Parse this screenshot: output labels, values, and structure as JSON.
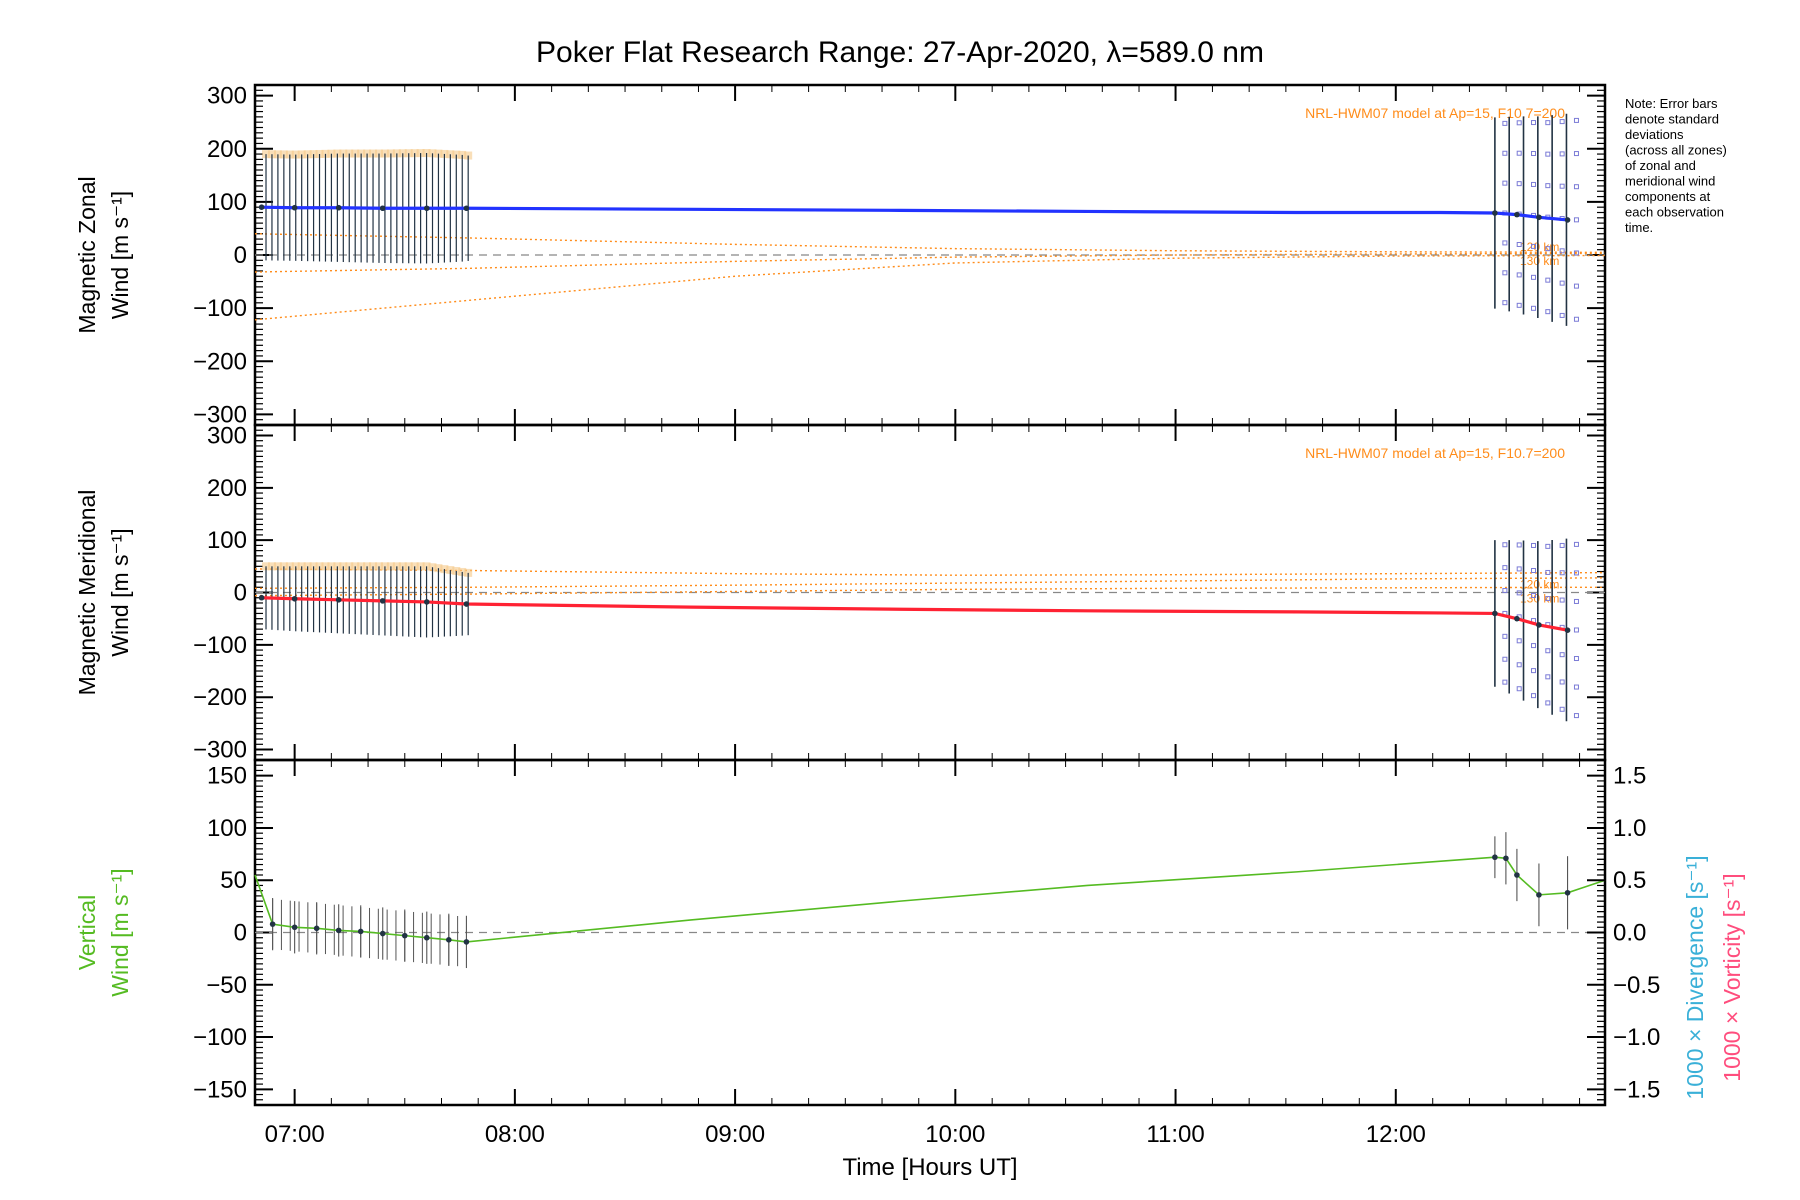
{
  "title": "Poker Flat Research Range: 27-Apr-2020, λ=589.0 nm",
  "note_lines": [
    "Note: Error bars",
    "denote standard",
    "deviations",
    "(across all zones)",
    "of zonal and",
    "meridional wind",
    "components at",
    "each observation",
    "time."
  ],
  "model_label": "NRL-HWM07 model at Ap=15, F10.7=200",
  "altitude_labels": [
    "120 km",
    "130 km"
  ],
  "colors": {
    "zonal": "#2233ff",
    "meridional": "#ff2233",
    "vertical": "#55bb22",
    "divergence": "#3ab0d8",
    "vorticity": "#ff4d7d",
    "model": "#ff8c1a",
    "error_bar": "#223344",
    "zone_marker": "#7b7bd6",
    "zone_band": "#f5c98a"
  },
  "chart_data": [
    {
      "type": "line",
      "panel": "zonal",
      "ylabel_line1": "Magnetic Zonal",
      "ylabel_line2": "Wind [m s⁻¹]",
      "xlim": [
        6.82,
        12.95
      ],
      "ylim": [
        -320,
        320
      ],
      "yticks": [
        -300,
        -200,
        -100,
        0,
        100,
        200,
        300
      ],
      "series": [
        {
          "x": [
            6.85,
            7.0,
            7.2,
            7.4,
            7.6,
            7.78,
            8.8,
            9.75,
            10.6,
            11.55,
            12.2,
            12.45,
            12.55,
            12.65,
            12.78
          ],
          "values": [
            90,
            89,
            89,
            88,
            88,
            88,
            86,
            84,
            82,
            80,
            80,
            79,
            76,
            71,
            66
          ],
          "err": [
            100,
            100,
            102,
            103,
            104,
            100,
            0,
            0,
            0,
            0,
            0,
            180,
            185,
            190,
            200
          ]
        }
      ],
      "model_curves": [
        {
          "x": [
            6.82,
            7.8,
            9.0,
            10.0,
            11.0,
            12.0,
            12.95
          ],
          "values": [
            40,
            32,
            20,
            12,
            8,
            6,
            5
          ]
        },
        {
          "x": [
            6.82,
            7.8,
            9.0,
            10.0,
            11.0,
            12.0,
            12.95
          ],
          "values": [
            -32,
            -25,
            -12,
            -4,
            0,
            2,
            3
          ]
        },
        {
          "x": [
            6.82,
            7.8,
            9.0,
            10.0,
            11.0,
            12.0,
            12.95
          ],
          "values": [
            -122,
            -85,
            -40,
            -15,
            -6,
            -2,
            -1
          ]
        }
      ]
    },
    {
      "type": "line",
      "panel": "meridional",
      "ylabel_line1": "Magnetic Meridional",
      "ylabel_line2": "Wind [m s⁻¹]",
      "xlim": [
        6.82,
        12.95
      ],
      "ylim": [
        -320,
        320
      ],
      "yticks": [
        -300,
        -200,
        -100,
        0,
        100,
        200,
        300
      ],
      "series": [
        {
          "x": [
            6.85,
            7.0,
            7.2,
            7.4,
            7.6,
            7.78,
            8.8,
            9.75,
            10.6,
            11.55,
            12.2,
            12.45,
            12.55,
            12.65,
            12.78
          ],
          "values": [
            -10,
            -12,
            -14,
            -16,
            -18,
            -22,
            -28,
            -32,
            -35,
            -37,
            -39,
            -40,
            -50,
            -62,
            -72
          ],
          "err": [
            60,
            62,
            64,
            66,
            68,
            60,
            0,
            0,
            0,
            0,
            0,
            140,
            150,
            160,
            175
          ]
        }
      ],
      "model_curves": [
        {
          "x": [
            6.82,
            7.8,
            9.0,
            10.0,
            11.0,
            12.0,
            12.95
          ],
          "values": [
            45,
            42,
            36,
            33,
            34,
            36,
            38
          ]
        },
        {
          "x": [
            6.82,
            7.8,
            9.0,
            10.0,
            11.0,
            12.0,
            12.95
          ],
          "values": [
            8,
            10,
            14,
            18,
            22,
            26,
            28
          ]
        },
        {
          "x": [
            6.82,
            7.8,
            9.0,
            10.0,
            11.0,
            12.0,
            12.95
          ],
          "values": [
            -6,
            -3,
            2,
            6,
            8,
            9,
            10
          ]
        }
      ]
    },
    {
      "type": "line",
      "panel": "vertical",
      "ylabel_line1": "Vertical",
      "ylabel_line2": "Wind [m s⁻¹]",
      "y2label_div": "1000 × Divergence [s⁻¹]",
      "y2label_vor": "1000 × Vorticity [s⁻¹]",
      "xlabel": "Time [Hours UT]",
      "xlim": [
        6.82,
        12.95
      ],
      "ylim": [
        -165,
        165
      ],
      "yticks": [
        -150,
        -100,
        -50,
        0,
        50,
        100,
        150
      ],
      "y2lim": [
        -1.65,
        1.65
      ],
      "y2ticks": [
        -1.5,
        -1.0,
        -0.5,
        0.0,
        0.5,
        1.0,
        1.5
      ],
      "y2ticklabels": [
        "−1.5",
        "−1.0",
        "−0.5",
        "0.0",
        "0.5",
        "1.0",
        "1.5"
      ],
      "xticks": [
        7,
        8,
        9,
        10,
        11,
        12
      ],
      "xticklabels": [
        "07:00",
        "08:00",
        "09:00",
        "10:00",
        "11:00",
        "12:00"
      ],
      "series": [
        {
          "x": [
            6.82,
            6.9,
            7.0,
            7.1,
            7.2,
            7.3,
            7.4,
            7.5,
            7.6,
            7.7,
            7.78,
            8.8,
            9.75,
            10.6,
            11.55,
            12.45,
            12.5,
            12.55,
            12.65,
            12.78,
            12.95
          ],
          "values": [
            55,
            8,
            5,
            4,
            2,
            1,
            -1,
            -3,
            -5,
            -7,
            -9,
            12,
            30,
            45,
            58,
            72,
            71,
            55,
            36,
            38,
            50
          ],
          "err": [
            0,
            25,
            25,
            25,
            25,
            25,
            25,
            25,
            25,
            25,
            25,
            0,
            0,
            0,
            0,
            20,
            25,
            25,
            30,
            35,
            0
          ]
        }
      ]
    }
  ]
}
